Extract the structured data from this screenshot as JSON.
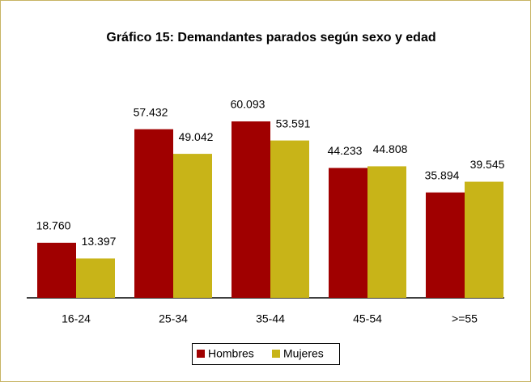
{
  "chart_data": {
    "type": "bar",
    "title": "Gráfico 15: Demandantes parados según sexo y edad",
    "categories": [
      "16-24",
      "25-34",
      "35-44",
      "45-54",
      ">=55"
    ],
    "series": [
      {
        "name": "Hombres",
        "color": "#a00000",
        "values": [
          18760,
          57432,
          60093,
          44233,
          35894
        ],
        "value_labels": [
          "18.760",
          "57.432",
          "60.093",
          "44.233",
          "35.894"
        ]
      },
      {
        "name": "Mujeres",
        "color": "#c8b418",
        "values": [
          13397,
          49042,
          53591,
          44808,
          39545
        ],
        "value_labels": [
          "13.397",
          "49.042",
          "53.591",
          "44.808",
          "39.545"
        ]
      }
    ]
  }
}
